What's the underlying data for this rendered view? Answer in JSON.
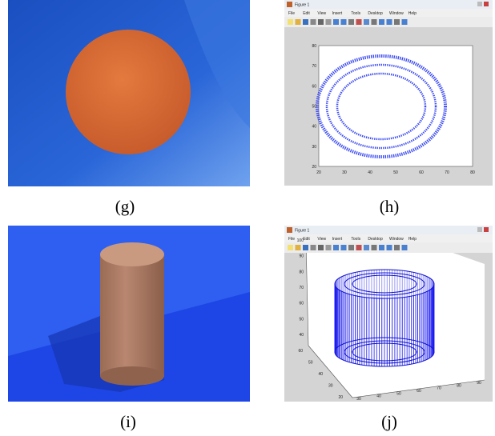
{
  "panels": [
    {
      "caption": "(g)"
    },
    {
      "caption": "(h)",
      "window": {
        "title": "Figure 1",
        "menu": [
          "File",
          "Edit",
          "View",
          "Insert",
          "Tools",
          "Desktop",
          "Window",
          "Help"
        ],
        "xticks": [
          "20",
          "30",
          "40",
          "50",
          "60",
          "70",
          "80"
        ],
        "yticks": [
          "80",
          "70",
          "60",
          "50",
          "40",
          "30",
          "20"
        ]
      }
    },
    {
      "caption": "(i)"
    },
    {
      "caption": "(j)",
      "window": {
        "title": "Figure 1",
        "menu": [
          "File",
          "Edit",
          "View",
          "Insert",
          "Tools",
          "Desktop",
          "Window",
          "Help"
        ],
        "zticks": [
          "100",
          "90",
          "80",
          "70",
          "60",
          "50",
          "40"
        ],
        "xticks": [
          "60",
          "50",
          "40",
          "30",
          "20"
        ],
        "yticks": [
          "30",
          "40",
          "50",
          "60",
          "70",
          "80",
          "90"
        ]
      }
    }
  ]
}
